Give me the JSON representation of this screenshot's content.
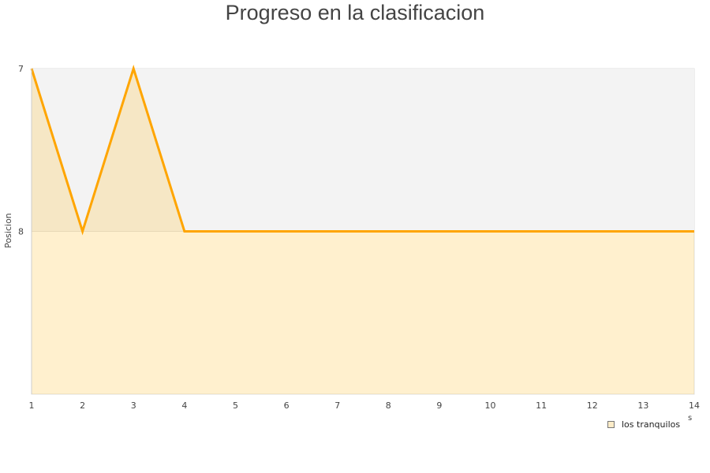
{
  "chart_data": {
    "type": "area",
    "title": "Progreso en la clasificacion",
    "xlabel": "s",
    "ylabel": "Posicion",
    "x": [
      1,
      2,
      3,
      4,
      5,
      6,
      7,
      8,
      9,
      10,
      11,
      12,
      13,
      14
    ],
    "series": [
      {
        "name": "los tranquilos",
        "values": [
          7,
          8,
          7,
          8,
          8,
          8,
          8,
          8,
          8,
          8,
          8,
          8,
          8,
          8
        ]
      }
    ],
    "ylim": [
      7,
      9
    ],
    "y_inverted": true,
    "yticks": [
      "7",
      "8"
    ],
    "xticks": [
      "1",
      "2",
      "3",
      "4",
      "5",
      "6",
      "7",
      "8",
      "9",
      "10",
      "11",
      "12",
      "13",
      "14"
    ],
    "legend": "bottom-right",
    "colors": {
      "line": "#ffa500",
      "fill": "#ffc850",
      "band": "#f3f3f3"
    }
  }
}
